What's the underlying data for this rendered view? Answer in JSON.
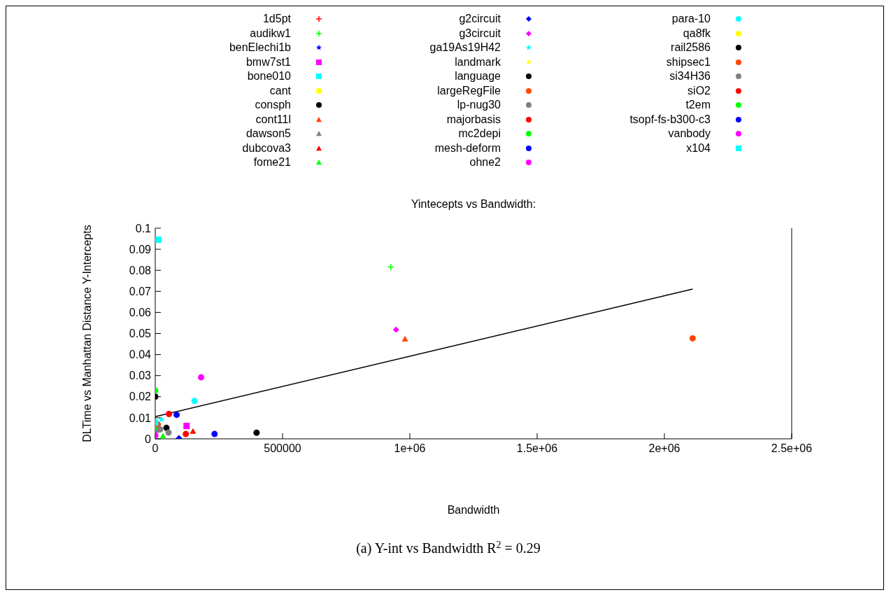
{
  "chart_data": {
    "type": "scatter",
    "title": "Yintecepts vs Bandwidth:",
    "xlabel": "Bandwidth",
    "ylabel": "DLTime vs Manhattan Distance Y-Intercepts",
    "annotations": [
      "(a) Y-int vs Bandwidth R$^{2}$ = 0.29"
    ],
    "xlim": [
      0,
      2500000
    ],
    "xticks": [
      0,
      500000,
      {
        "value": 1000000,
        "label": "1e+06"
      },
      {
        "value": 1500000,
        "label": "1.5e+06"
      },
      {
        "value": 2000000,
        "label": "2e+06"
      },
      {
        "value": 2500000,
        "label": "2.5e+06"
      }
    ],
    "ylim": [
      0,
      0.1
    ],
    "yticks": [
      0,
      0.01,
      0.02,
      0.03,
      0.04,
      0.05,
      0.06,
      0.07,
      0.08,
      0.09,
      0.1
    ],
    "legend": "top",
    "series": [
      {
        "name": "1d5pt",
        "color": "#ff0000",
        "marker": "cross",
        "x": [
          0
        ],
        "values": [
          0.001
        ]
      },
      {
        "name": "audikw1",
        "color": "#00ff00",
        "marker": "cross",
        "x": [
          925000
        ],
        "values": [
          0.0816
        ]
      },
      {
        "name": "benElechi1b",
        "color": "#0000ff",
        "marker": "star",
        "x": [
          null
        ],
        "values": [
          null
        ]
      },
      {
        "name": "bmw7st1",
        "color": "#ff00ff",
        "marker": "square",
        "x": [
          123000
        ],
        "values": [
          0.0061
        ]
      },
      {
        "name": "bone010",
        "color": "#00ffff",
        "marker": "square",
        "x": [
          12000
        ],
        "values": [
          0.0945
        ]
      },
      {
        "name": "cant",
        "color": "#ffff00",
        "marker": "circle",
        "x": [
          null
        ],
        "values": [
          null
        ]
      },
      {
        "name": "consph",
        "color": "#000000",
        "marker": "circle",
        "x": [
          44000
        ],
        "values": [
          0.0052
        ]
      },
      {
        "name": "cont11l",
        "color": "#ff4500",
        "marker": "triangle",
        "x": [
          981000
        ],
        "values": [
          0.0474
        ]
      },
      {
        "name": "dawson5",
        "color": "#808080",
        "marker": "triangle",
        "x": [
          5000
        ],
        "values": [
          0.004
        ]
      },
      {
        "name": "dubcova3",
        "color": "#ff0000",
        "marker": "triangle",
        "x": [
          148000
        ],
        "values": [
          0.0036
        ]
      },
      {
        "name": "fome21",
        "color": "#00ff00",
        "marker": "triangle",
        "x": [
          30000
        ],
        "values": [
          0.0014
        ]
      },
      {
        "name": "g2circuit",
        "color": "#0000ff",
        "marker": "diamond",
        "x": [
          93000
        ],
        "values": [
          0.0003
        ]
      },
      {
        "name": "g3circuit",
        "color": "#ff00ff",
        "marker": "diamond",
        "x": [
          946000
        ],
        "values": [
          0.0518
        ]
      },
      {
        "name": "ga19As19H42",
        "color": "#00ffff",
        "marker": "star",
        "x": [
          25000
        ],
        "values": [
          0.0092
        ]
      },
      {
        "name": "landmark",
        "color": "#ffff00",
        "marker": "star",
        "x": [
          null
        ],
        "values": [
          null
        ]
      },
      {
        "name": "language",
        "color": "#000000",
        "marker": "circle",
        "x": [
          398000
        ],
        "values": [
          0.0029
        ]
      },
      {
        "name": "largeRegFile",
        "color": "#ff4500",
        "marker": "circle",
        "x": [
          2111000
        ],
        "values": [
          0.0477
        ]
      },
      {
        "name": "lp-nug30",
        "color": "#808080",
        "marker": "circle",
        "x": [
          52000
        ],
        "values": [
          0.003
        ]
      },
      {
        "name": "majorbasis",
        "color": "#ff0000",
        "marker": "circle",
        "x": [
          120000
        ],
        "values": [
          0.0023
        ]
      },
      {
        "name": "mc2depi",
        "color": "#00ff00",
        "marker": "circle",
        "x": [
          0
        ],
        "values": [
          0.0058
        ]
      },
      {
        "name": "mesh-deform",
        "color": "#0000ff",
        "marker": "circle",
        "x": [
          233000
        ],
        "values": [
          0.0023
        ]
      },
      {
        "name": "ohne2",
        "color": "#ff00ff",
        "marker": "circle",
        "x": [
          180000
        ],
        "values": [
          0.0292
        ]
      },
      {
        "name": "para-10",
        "color": "#00ffff",
        "marker": "circle",
        "x": [
          154000
        ],
        "values": [
          0.018
        ]
      },
      {
        "name": "qa8fk",
        "color": "#ffff00",
        "marker": "circle",
        "x": [
          null
        ],
        "values": [
          null
        ]
      },
      {
        "name": "rail2586",
        "color": "#000000",
        "marker": "circle",
        "x": [
          0
        ],
        "values": [
          0.02
        ]
      },
      {
        "name": "shipsec1",
        "color": "#ff4500",
        "marker": "circle",
        "x": [
          10000
        ],
        "values": [
          0.0068
        ]
      },
      {
        "name": "si34H36",
        "color": "#808080",
        "marker": "circle",
        "x": [
          19000
        ],
        "values": [
          0.0045
        ]
      },
      {
        "name": "siO2",
        "color": "#ff0000",
        "marker": "circle",
        "x": [
          54000
        ],
        "values": [
          0.0118
        ]
      },
      {
        "name": "t2em",
        "color": "#00ff00",
        "marker": "circle",
        "x": [
          0
        ],
        "values": [
          0.0229
        ]
      },
      {
        "name": "tsopf-fs-b300-c3",
        "color": "#0000ff",
        "marker": "circle",
        "x": [
          84000
        ],
        "values": [
          0.0114
        ]
      },
      {
        "name": "vanbody",
        "color": "#ff00ff",
        "marker": "circle",
        "x": [
          0
        ],
        "values": [
          0.0017
        ]
      },
      {
        "name": "x104",
        "color": "#00ffff",
        "marker": "square",
        "x": [
          0
        ],
        "values": [
          0.0077
        ]
      },
      {
        "type": "line",
        "color": "#000000",
        "marker": "none",
        "x": [
          0,
          2111000
        ],
        "values": [
          0.0105,
          0.0711
        ]
      }
    ]
  }
}
